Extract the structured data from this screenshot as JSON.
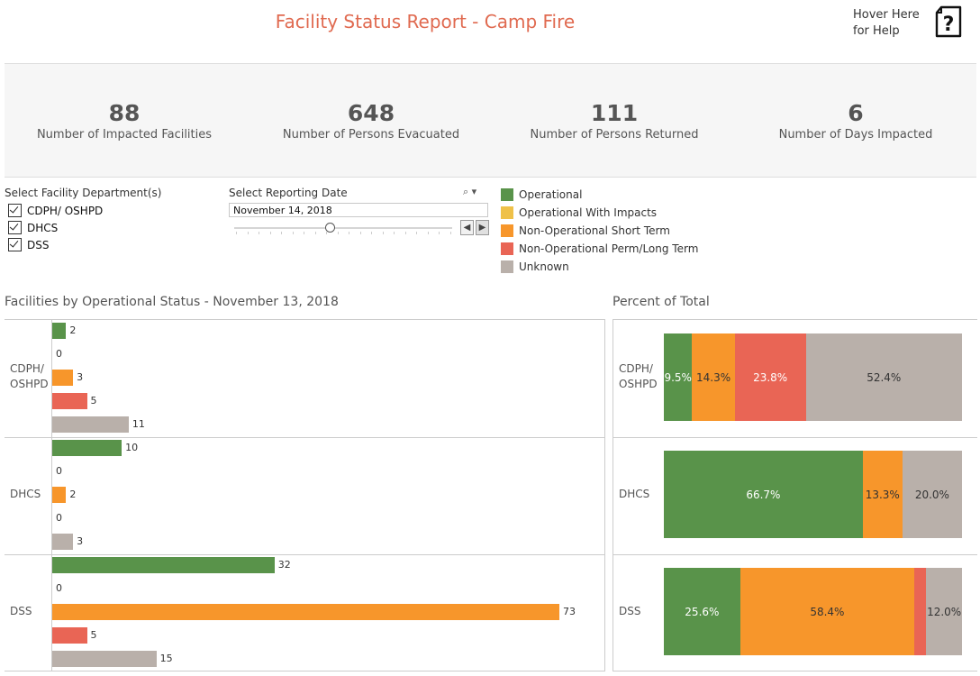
{
  "header": {
    "title": "Facility Status Report - Camp Fire",
    "help_text": "Hover Here for Help"
  },
  "kpis": [
    {
      "value": "88",
      "label": "Number of Impacted Facilities"
    },
    {
      "value": "648",
      "label": "Number of Persons Evacuated"
    },
    {
      "value": "111",
      "label": "Number of Persons Returned"
    },
    {
      "value": "6",
      "label": "Number of Days Impacted"
    }
  ],
  "filters": {
    "department_title": "Select Facility Department(s)",
    "departments": [
      "CDPH/ OSHPD",
      "DHCS",
      "DSS"
    ],
    "date_title": "Select Reporting Date",
    "date_value": "November 14, 2018"
  },
  "legend": [
    {
      "label": "Operational",
      "color": "#59934a"
    },
    {
      "label": "Operational With Impacts",
      "color": "#efc149"
    },
    {
      "label": "Non-Operational Short Term",
      "color": "#f7962b"
    },
    {
      "label": "Non-Operational Perm/Long Term",
      "color": "#e96555"
    },
    {
      "label": "Unknown",
      "color": "#b9b0aa"
    }
  ],
  "left_chart": {
    "title": "Facilities by Operational Status - November 13, 2018"
  },
  "right_chart": {
    "title": "Percent of Total"
  },
  "chart_data": [
    {
      "type": "bar",
      "orientation": "horizontal",
      "title": "Facilities by Operational Status - November 13, 2018",
      "groups": [
        "CDPH/ OSHPD",
        "DHCS",
        "DSS"
      ],
      "categories": [
        "Operational",
        "Operational With Impacts",
        "Non-Operational Short Term",
        "Non-Operational Perm/Long Term",
        "Unknown"
      ],
      "values": [
        [
          2,
          0,
          3,
          5,
          11
        ],
        [
          10,
          0,
          2,
          0,
          3
        ],
        [
          32,
          0,
          73,
          5,
          15
        ]
      ]
    },
    {
      "type": "bar",
      "stacked": true,
      "orientation": "horizontal",
      "title": "Percent of Total",
      "groups": [
        "CDPH/ OSHPD",
        "DHCS",
        "DSS"
      ],
      "series": [
        {
          "name": "Operational",
          "values": [
            9.5,
            66.7,
            25.6
          ],
          "labels": [
            "9.5%",
            "66.7%",
            "25.6%"
          ]
        },
        {
          "name": "Operational With Impacts",
          "values": [
            0,
            0,
            0
          ],
          "labels": [
            "",
            "",
            ""
          ]
        },
        {
          "name": "Non-Operational Short Term",
          "values": [
            14.3,
            13.3,
            58.4
          ],
          "labels": [
            "14.3%",
            "13.3%",
            "58.4%"
          ]
        },
        {
          "name": "Non-Operational Perm/Long Term",
          "values": [
            23.8,
            0,
            4.0
          ],
          "labels": [
            "23.8%",
            "",
            ""
          ]
        },
        {
          "name": "Unknown",
          "values": [
            52.4,
            20.0,
            12.0
          ],
          "labels": [
            "52.4%",
            "20.0%",
            "12.0%"
          ]
        }
      ]
    }
  ]
}
